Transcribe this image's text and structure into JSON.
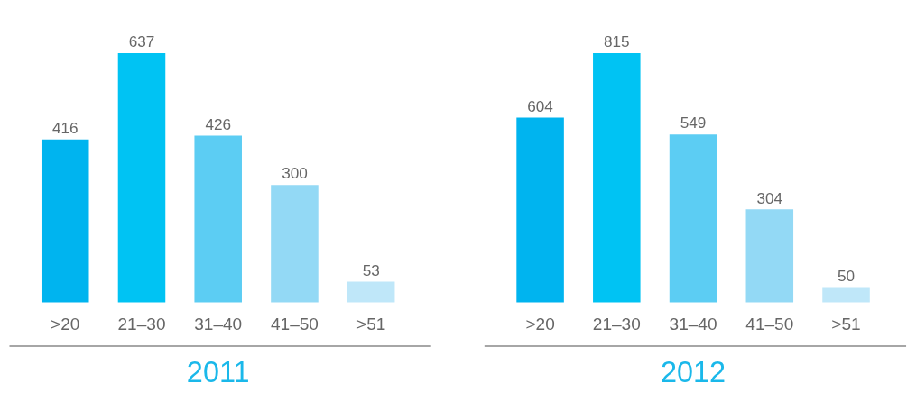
{
  "chart_data": [
    {
      "type": "bar",
      "title": "2011",
      "categories": [
        ">20",
        "21–30",
        "31–40",
        "41–50",
        ">51"
      ],
      "values": [
        416,
        637,
        426,
        300,
        53
      ],
      "colors": [
        "#00b4ef",
        "#00c3f3",
        "#5ccdf3",
        "#93d9f5",
        "#bfe7f9"
      ],
      "data_labels": true,
      "legend": false,
      "grid": false
    },
    {
      "type": "bar",
      "title": "2012",
      "categories": [
        ">20",
        "21–30",
        "31–40",
        "41–50",
        ">51"
      ],
      "values": [
        604,
        815,
        549,
        304,
        50
      ],
      "colors": [
        "#00b4ef",
        "#00c3f3",
        "#5ccdf3",
        "#93d9f5",
        "#bfe7f9"
      ],
      "data_labels": true,
      "legend": false,
      "grid": false
    }
  ]
}
